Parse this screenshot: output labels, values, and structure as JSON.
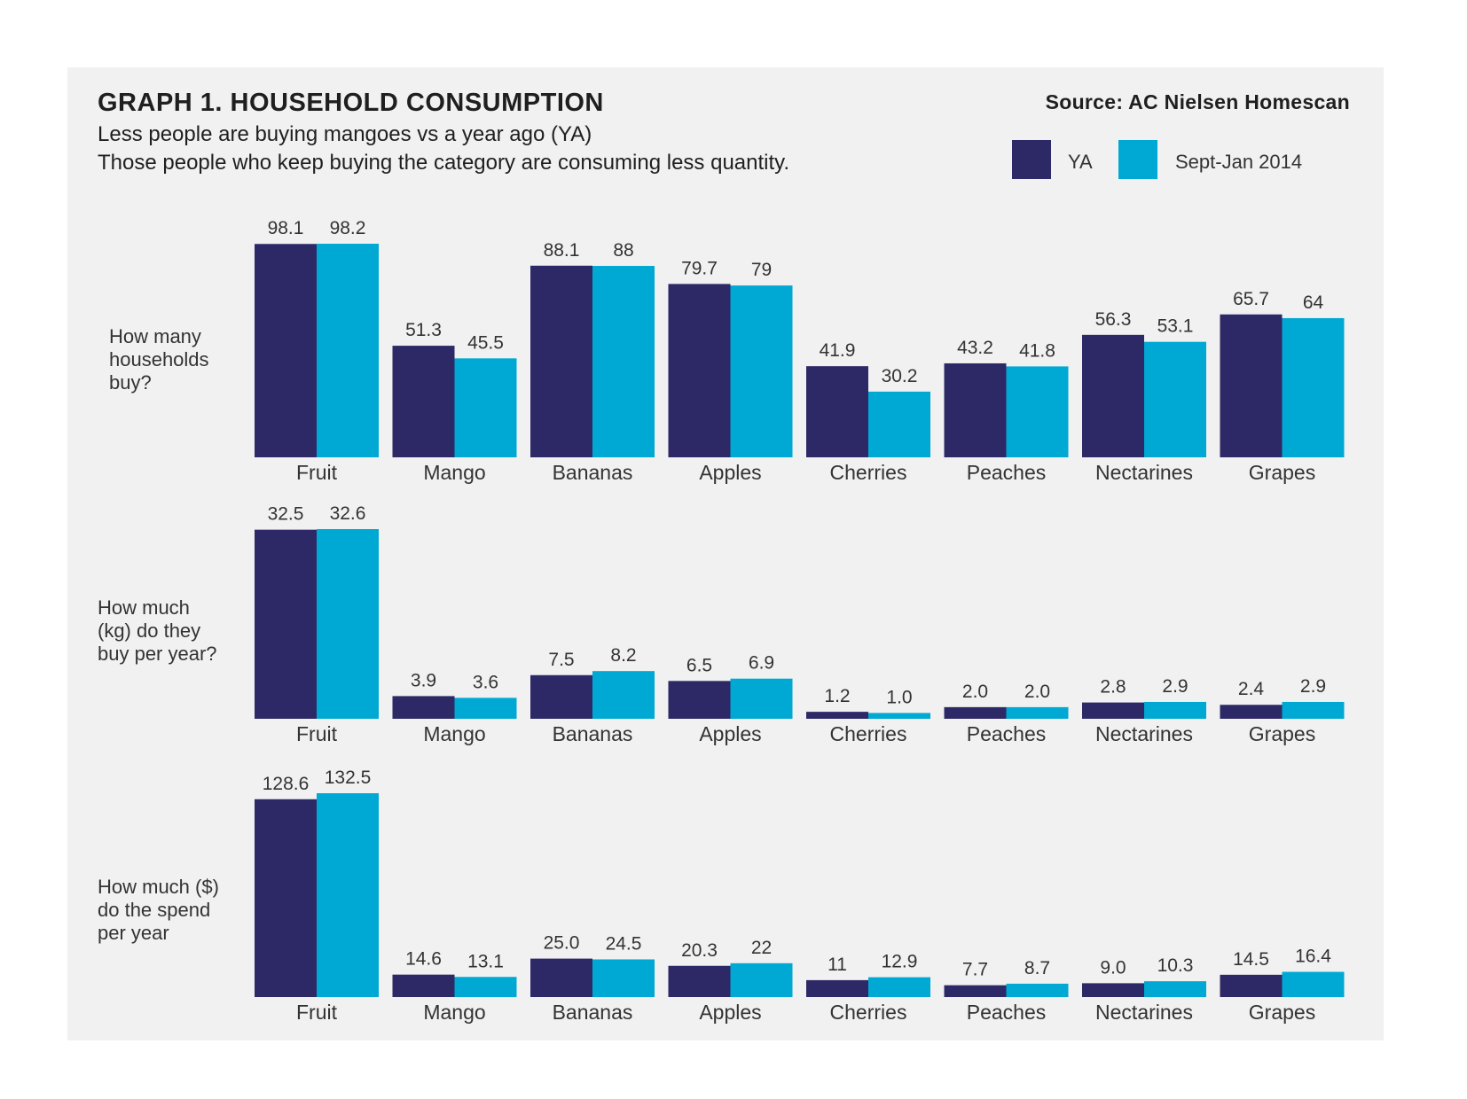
{
  "header": {
    "title": "GRAPH 1. HOUSEHOLD CONSUMPTION",
    "subtitle_line1": "Less people are buying mangoes vs a year ago (YA)",
    "subtitle_line2": "Those people who keep buying the category are consuming less quantity.",
    "source": "Source: AC Nielsen Homescan"
  },
  "legend": {
    "ya_label": "YA",
    "current_label": "Sept-Jan 2014"
  },
  "colors": {
    "ya": "#2d2966",
    "current": "#00a9d4",
    "panel": "#f0f1f0"
  },
  "chart_data": [
    {
      "type": "bar",
      "title": "How many households buy?",
      "row_label": "How many\nhouseholds\nbuy?",
      "categories": [
        "Fruit",
        "Mango",
        "Bananas",
        "Apples",
        "Cherries",
        "Peaches",
        "Nectarines",
        "Grapes"
      ],
      "series": [
        {
          "name": "YA",
          "values": [
            98.1,
            51.3,
            88.1,
            79.7,
            41.9,
            43.2,
            56.3,
            65.7
          ],
          "labels": [
            "98.1",
            "51.3",
            "88.1",
            "79.7",
            "41.9",
            "43.2",
            "56.3",
            "65.7"
          ]
        },
        {
          "name": "Sept-Jan 2014",
          "values": [
            98.2,
            45.5,
            88,
            79,
            30.2,
            41.8,
            53.1,
            64
          ],
          "labels": [
            "98.2",
            "45.5",
            "88",
            "79",
            "30.2",
            "41.8",
            "53.1",
            "64"
          ]
        }
      ],
      "ylim": [
        0,
        98.2
      ]
    },
    {
      "type": "bar",
      "title": "How much (kg) do they buy per year?",
      "row_label": "How much\n(kg) do they\nbuy per year?",
      "categories": [
        "Fruit",
        "Mango",
        "Bananas",
        "Apples",
        "Cherries",
        "Peaches",
        "Nectarines",
        "Grapes"
      ],
      "series": [
        {
          "name": "YA",
          "values": [
            32.5,
            3.9,
            7.5,
            6.5,
            1.2,
            2.0,
            2.8,
            2.4
          ],
          "labels": [
            "32.5",
            "3.9",
            "7.5",
            "6.5",
            "1.2",
            "2.0",
            "2.8",
            "2.4"
          ]
        },
        {
          "name": "Sept-Jan 2014",
          "values": [
            32.6,
            3.6,
            8.2,
            6.9,
            1.0,
            2.0,
            2.9,
            2.9
          ],
          "labels": [
            "32.6",
            "3.6",
            "8.2",
            "6.9",
            "1.0",
            "2.0",
            "2.9",
            "2.9"
          ]
        }
      ],
      "ylim": [
        0,
        32.6
      ]
    },
    {
      "type": "bar",
      "title": "How much ($) do the spend per year",
      "row_label": "How much ($)\ndo the spend\nper year",
      "categories": [
        "Fruit",
        "Mango",
        "Bananas",
        "Apples",
        "Cherries",
        "Peaches",
        "Nectarines",
        "Grapes"
      ],
      "series": [
        {
          "name": "YA",
          "values": [
            128.6,
            14.6,
            25.0,
            20.3,
            11,
            7.7,
            9.0,
            14.5
          ],
          "labels": [
            "128.6",
            "14.6",
            "25.0",
            "20.3",
            "11",
            "7.7",
            "9.0",
            "14.5"
          ]
        },
        {
          "name": "Sept-Jan 2014",
          "values": [
            132.5,
            13.1,
            24.5,
            22,
            12.9,
            8.7,
            10.3,
            16.4
          ],
          "labels": [
            "132.5",
            "13.1",
            "24.5",
            "22",
            "12.9",
            "8.7",
            "10.3",
            "16.4"
          ]
        }
      ],
      "ylim": [
        0,
        132.5
      ]
    }
  ]
}
